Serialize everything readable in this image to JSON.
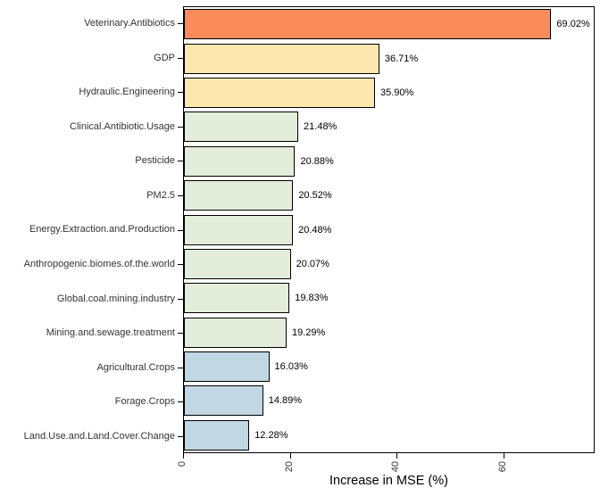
{
  "chart_data": {
    "type": "bar",
    "orientation": "horizontal",
    "title": "",
    "xlabel": "Increase in MSE (%)",
    "ylabel": "",
    "xlim": [
      0,
      77
    ],
    "x_ticks": [
      0,
      20,
      40,
      60
    ],
    "x_tick_labels": [
      "0",
      "20",
      "40",
      "60"
    ],
    "x_tick_rotation_deg": 90,
    "grid": false,
    "legend": null,
    "categories": [
      "Veterinary.Antibiotics",
      "GDP",
      "Hydraulic.Engineering",
      "Clinical.Antibiotic.Usage",
      "Pesticide",
      "PM2.5",
      "Energy.Extraction.and.Production",
      "Anthropogenic.biomes.of.the.world",
      "Global.coal.mining.industry",
      "Mining.and.sewage.treatment",
      "Agricultural.Crops",
      "Forage.Crops",
      "Land.Use.and.Land.Cover.Change"
    ],
    "values": [
      69.02,
      36.71,
      35.9,
      21.48,
      20.88,
      20.52,
      20.48,
      20.07,
      19.83,
      19.29,
      16.03,
      14.89,
      12.28
    ],
    "value_labels": [
      "69.02%",
      "36.71%",
      "35.90%",
      "21.48%",
      "20.88%",
      "20.52%",
      "20.48%",
      "20.07%",
      "19.83%",
      "19.29%",
      "16.03%",
      "14.89%",
      "12.28%"
    ],
    "bar_colors": [
      "#F98C5A",
      "#FDE9B0",
      "#FDE9B0",
      "#E4EDD9",
      "#E4EDD9",
      "#E4EDD9",
      "#E4EDD9",
      "#E4EDD9",
      "#E4EDD9",
      "#E4EDD9",
      "#C1D7E3",
      "#C1D7E3",
      "#C1D7E3"
    ],
    "bar_border_color": "#000000"
  },
  "colors": {
    "background": "#ffffff",
    "panel_border": "#000000",
    "axis_text": "#333333",
    "value_text": "#000000"
  }
}
